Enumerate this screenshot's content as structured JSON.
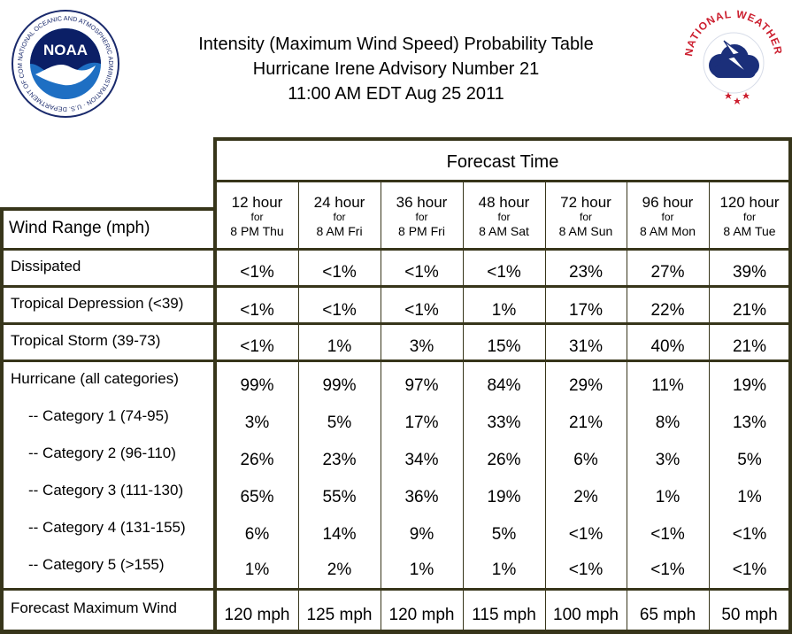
{
  "title_lines": [
    "Intensity (Maximum Wind Speed) Probability Table",
    "Hurricane Irene Advisory Number 21",
    "11:00 AM EDT Aug 25 2011"
  ],
  "logos": {
    "noaa": {
      "label": "NOAA",
      "ring_text": "NATIONAL OCEANIC AND ATMOSPHERIC ADMINISTRATION · U.S. DEPARTMENT OF COMMERCE"
    },
    "nws": {
      "ring_text": "NATIONAL WEATHER SERVICE"
    }
  },
  "table": {
    "forecast_time_label": "Forecast Time",
    "row_header_label": "Wind Range (mph)",
    "columns": [
      {
        "hours": "12 hour",
        "for": "for",
        "date": "8 PM Thu"
      },
      {
        "hours": "24 hour",
        "for": "for",
        "date": "8 AM Fri"
      },
      {
        "hours": "36 hour",
        "for": "for",
        "date": "8 PM Fri"
      },
      {
        "hours": "48 hour",
        "for": "for",
        "date": "8 AM Sat"
      },
      {
        "hours": "72 hour",
        "for": "for",
        "date": "8 AM Sun"
      },
      {
        "hours": "96 hour",
        "for": "for",
        "date": "8 AM Mon"
      },
      {
        "hours": "120 hour",
        "for": "for",
        "date": "8 AM Tue"
      }
    ],
    "rows": [
      {
        "label": "Dissipated",
        "values": [
          "<1%",
          "<1%",
          "<1%",
          "<1%",
          "23%",
          "27%",
          "39%"
        ]
      },
      {
        "label": "Tropical Depression (<39)",
        "values": [
          "<1%",
          "<1%",
          "<1%",
          "1%",
          "17%",
          "22%",
          "21%"
        ]
      },
      {
        "label": "Tropical Storm (39-73)",
        "values": [
          "<1%",
          "1%",
          "3%",
          "15%",
          "31%",
          "40%",
          "21%"
        ]
      },
      {
        "label": "Hurricane (all categories)",
        "values": [
          "99%",
          "99%",
          "97%",
          "84%",
          "29%",
          "11%",
          "19%"
        ]
      },
      {
        "label": "-- Category 1 (74-95)",
        "values": [
          "3%",
          "5%",
          "17%",
          "33%",
          "21%",
          "8%",
          "13%"
        ]
      },
      {
        "label": "-- Category 2 (96-110)",
        "values": [
          "26%",
          "23%",
          "34%",
          "26%",
          "6%",
          "3%",
          "5%"
        ]
      },
      {
        "label": "-- Category 3 (111-130)",
        "values": [
          "65%",
          "55%",
          "36%",
          "19%",
          "2%",
          "1%",
          "1%"
        ]
      },
      {
        "label": "-- Category 4 (131-155)",
        "values": [
          "6%",
          "14%",
          "9%",
          "5%",
          "<1%",
          "<1%",
          "<1%"
        ]
      },
      {
        "label": "-- Category 5 (>155)",
        "values": [
          "1%",
          "2%",
          "1%",
          "1%",
          "<1%",
          "<1%",
          "<1%"
        ]
      },
      {
        "label": "Forecast Maximum Wind",
        "values": [
          "120 mph",
          "125 mph",
          "120 mph",
          "115 mph",
          "100 mph",
          "65 mph",
          "50 mph"
        ]
      }
    ]
  }
}
